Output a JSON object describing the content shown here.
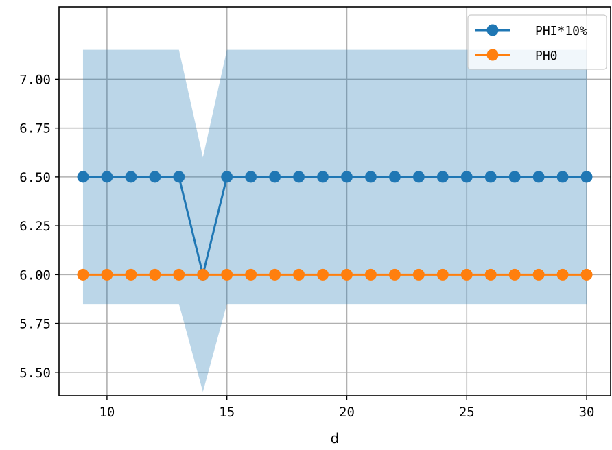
{
  "chart_data": {
    "type": "line",
    "title": "",
    "xlabel": "d",
    "ylabel": "",
    "xlim": [
      8,
      31
    ],
    "ylim": [
      5.38,
      7.37
    ],
    "xticks": [
      10,
      15,
      20,
      25,
      30
    ],
    "yticks": [
      5.5,
      5.75,
      6.0,
      6.25,
      6.5,
      6.75,
      7.0
    ],
    "ytick_labels": [
      "5.50",
      "5.75",
      "6.00",
      "6.25",
      "6.50",
      "6.75",
      "7.00"
    ],
    "grid": true,
    "legend": "top-right",
    "x": [
      9,
      10,
      11,
      12,
      13,
      14,
      15,
      16,
      17,
      18,
      19,
      20,
      21,
      22,
      23,
      24,
      25,
      26,
      27,
      28,
      29,
      30
    ],
    "series": [
      {
        "name": "PHI*10%",
        "color": "#1f77b4",
        "marker": "circle",
        "values": [
          6.5,
          6.5,
          6.5,
          6.5,
          6.5,
          6.0,
          6.5,
          6.5,
          6.5,
          6.5,
          6.5,
          6.5,
          6.5,
          6.5,
          6.5,
          6.5,
          6.5,
          6.5,
          6.5,
          6.5,
          6.5,
          6.5
        ]
      },
      {
        "name": "PH0",
        "color": "#ff7f0e",
        "marker": "circle",
        "values": [
          6.0,
          6.0,
          6.0,
          6.0,
          6.0,
          6.0,
          6.0,
          6.0,
          6.0,
          6.0,
          6.0,
          6.0,
          6.0,
          6.0,
          6.0,
          6.0,
          6.0,
          6.0,
          6.0,
          6.0,
          6.0,
          6.0
        ]
      }
    ],
    "band": {
      "color": "#1f77b4",
      "opacity": 0.3,
      "lower": [
        5.85,
        5.85,
        5.85,
        5.85,
        5.85,
        5.4,
        5.85,
        5.85,
        5.85,
        5.85,
        5.85,
        5.85,
        5.85,
        5.85,
        5.85,
        5.85,
        5.85,
        5.85,
        5.85,
        5.85,
        5.85,
        5.85
      ],
      "upper": [
        7.15,
        7.15,
        7.15,
        7.15,
        7.15,
        6.6,
        7.15,
        7.15,
        7.15,
        7.15,
        7.15,
        7.15,
        7.15,
        7.15,
        7.15,
        7.15,
        7.15,
        7.15,
        7.15,
        7.15,
        7.15,
        7.15
      ]
    }
  }
}
